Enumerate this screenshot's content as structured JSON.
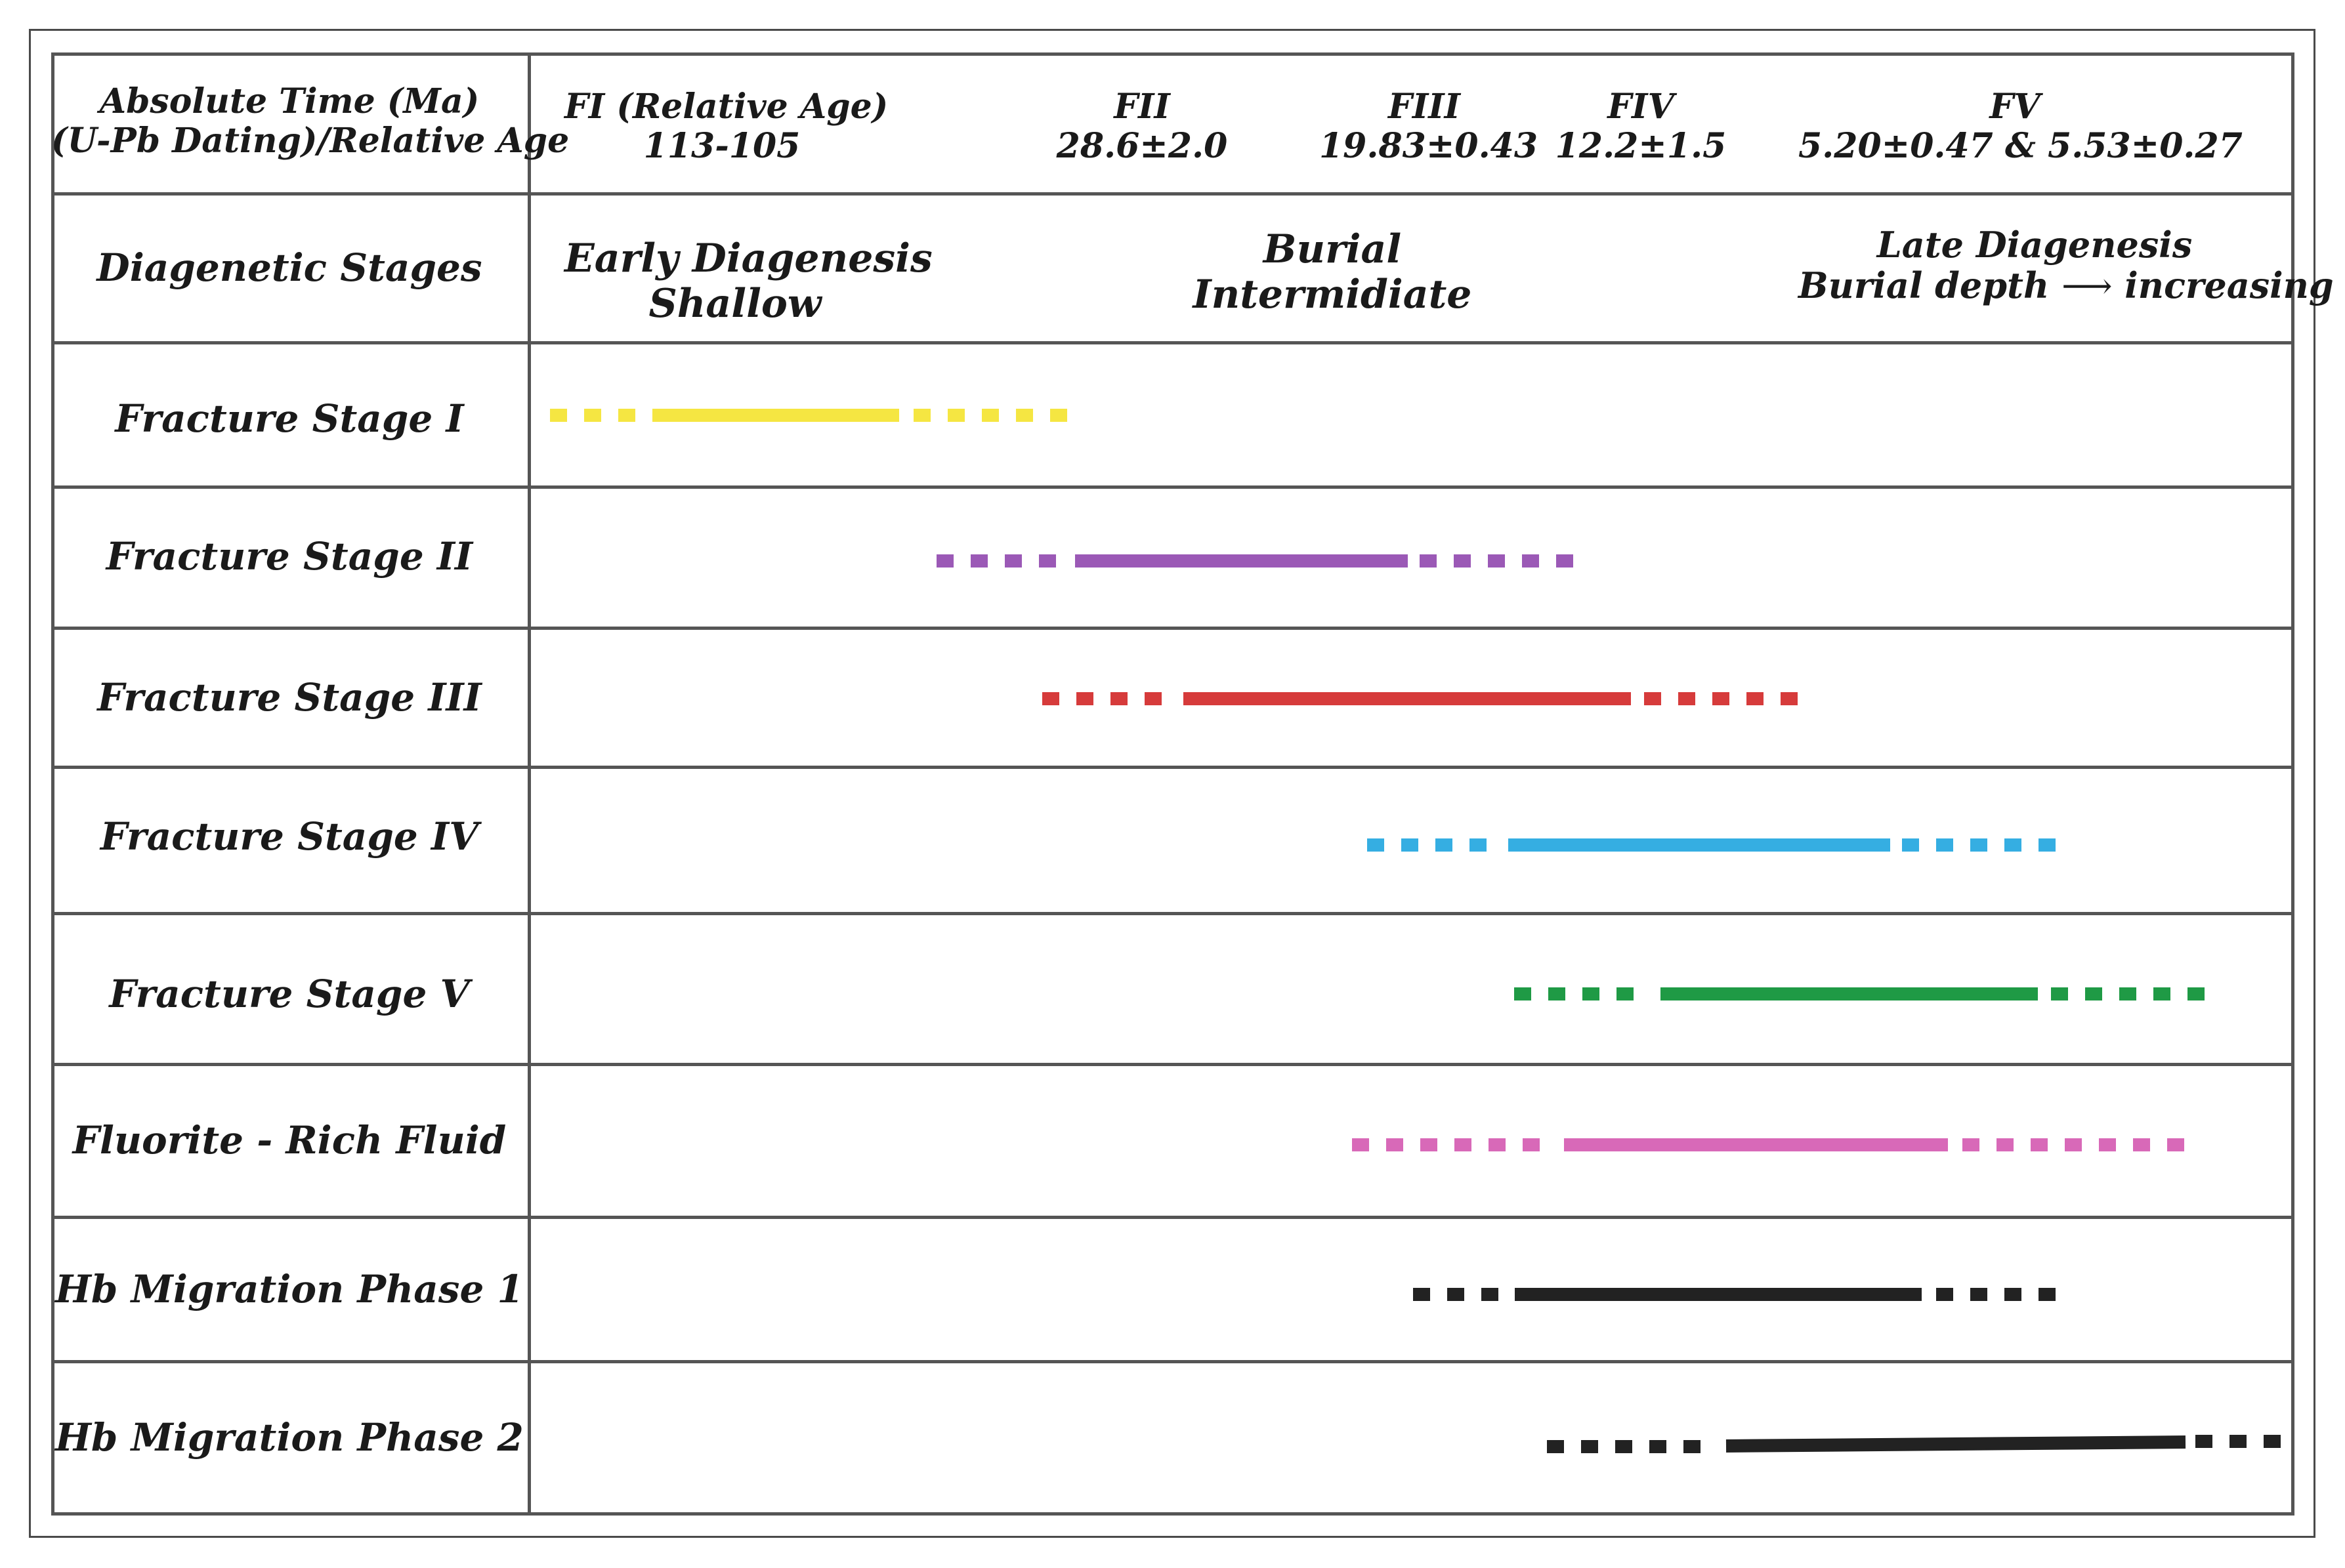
{
  "header": {
    "time_label_line1": "Absolute Time (Ma)",
    "time_label_line2": "(U-Pb Dating)/Relative Age",
    "stages_label": "Diagenetic Stages",
    "time_columns": [
      {
        "name": "FI (Relative Age)",
        "value": "113-105"
      },
      {
        "name": "FII",
        "value": "28.6±2.0"
      },
      {
        "name": "FIII",
        "value": "19.83±0.43"
      },
      {
        "name": "FIV",
        "value": "12.2±1.5"
      },
      {
        "name": "FV",
        "value": "5.20±0.47  & 5.53±0.27"
      }
    ],
    "diagenesis": {
      "early_line1": "Early Diagenesis",
      "early_line2": "Shallow",
      "burial_line1": "Burial",
      "burial_line2": "Intermidiate",
      "late_line1": "Late Diagenesis",
      "late_line2_a": "Burial depth",
      "late_arrow": "⟶",
      "late_line2_b": "increasing"
    }
  },
  "rows": [
    {
      "label": "Fracture Stage I",
      "color": "#f5e642"
    },
    {
      "label": "Fracture Stage II",
      "color": "#9b59b6"
    },
    {
      "label": "Fracture Stage III",
      "color": "#d63b3b"
    },
    {
      "label": "Fracture Stage IV",
      "color": "#35aee2"
    },
    {
      "label": "Fracture Stage V",
      "color": "#1f9a45"
    },
    {
      "label": "Fluorite - Rich Fluid",
      "color": "#d869b8"
    },
    {
      "label": "Hb Migration Phase 1",
      "color": "#222222"
    },
    {
      "label": "Hb Migration Phase 2",
      "color": "#222222"
    }
  ]
}
